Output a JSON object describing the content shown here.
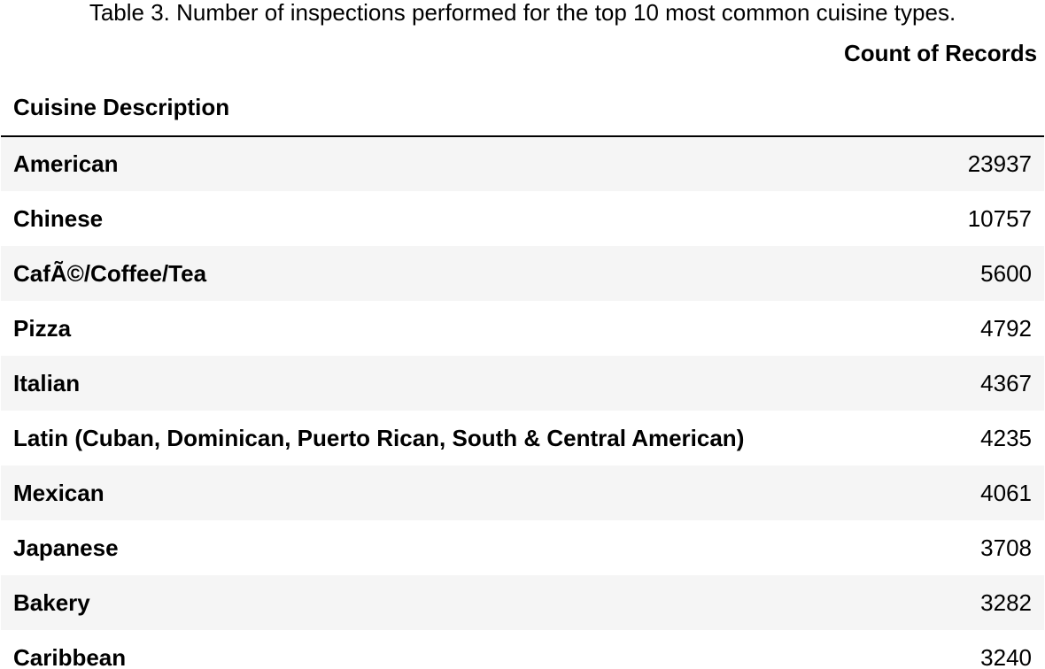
{
  "caption": "Table 3. Number of inspections performed for the top 10 most common cuisine types.",
  "table": {
    "value_header": "Count of Records",
    "index_header": "Cuisine Description",
    "rows": [
      {
        "cuisine": "American",
        "count": "23937"
      },
      {
        "cuisine": "Chinese",
        "count": "10757"
      },
      {
        "cuisine": "CafÃ©/Coffee/Tea",
        "count": "5600"
      },
      {
        "cuisine": "Pizza",
        "count": "4792"
      },
      {
        "cuisine": "Italian",
        "count": "4367"
      },
      {
        "cuisine": "Latin (Cuban, Dominican, Puerto Rican, South & Central American)",
        "count": "4235"
      },
      {
        "cuisine": "Mexican",
        "count": "4061"
      },
      {
        "cuisine": "Japanese",
        "count": "3708"
      },
      {
        "cuisine": "Bakery",
        "count": "3282"
      },
      {
        "cuisine": "Caribbean",
        "count": "3240"
      }
    ]
  }
}
